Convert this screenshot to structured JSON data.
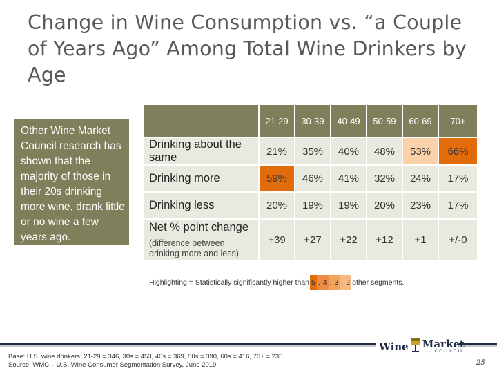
{
  "title": "Change in Wine Consumption vs. “a Couple of Years Ago” Among Total Wine Drinkers by Age",
  "callout": "Other Wine Market Council research has shown that the majority of those in their 20s drinking more wine, drank little or no wine a few years ago.",
  "age_groups": [
    "21-29",
    "30-39",
    "40-49",
    "50-59",
    "60-69",
    "70+"
  ],
  "rows": [
    {
      "label": "Drinking about the same",
      "values": [
        "21%",
        "35%",
        "40%",
        "48%",
        "53%",
        "66%"
      ]
    },
    {
      "label": "Drinking more",
      "values": [
        "59%",
        "46%",
        "41%",
        "32%",
        "24%",
        "17%"
      ]
    },
    {
      "label": "Drinking less",
      "values": [
        "20%",
        "19%",
        "19%",
        "20%",
        "23%",
        "17%"
      ]
    }
  ],
  "net": {
    "label": "Net % point change",
    "sublabel": "(difference between drinking more and less)",
    "values": [
      "+39",
      "+27",
      "+22",
      "+12",
      "+1",
      "+/-0"
    ]
  },
  "legend": {
    "prefix": "Highlighting = Statistically significantly higher than",
    "chips": [
      "5",
      "4",
      "3",
      "2"
    ],
    "suffix": "other segments.",
    "colors": [
      "#e36c0a",
      "#ed8c45",
      "#f2a35e",
      "#f6ba86"
    ]
  },
  "highlight_colors": {
    "dark": "#e36c0a",
    "medium": "#f2a35e",
    "light": "#fad1a8"
  },
  "base_note": "Base: U.S. wine drinkers: 21-29 = 346, 30s = 453, 40s = 369, 50s = 390, 60s = 416, 70+ = 235",
  "source_note": "Source: WMC – U.S. Wine Consumer Segmentation Survey, June 2019",
  "logo": {
    "word1": "Wine",
    "word2": "Market",
    "word3": "COUNCIL"
  },
  "page_number": "25"
}
